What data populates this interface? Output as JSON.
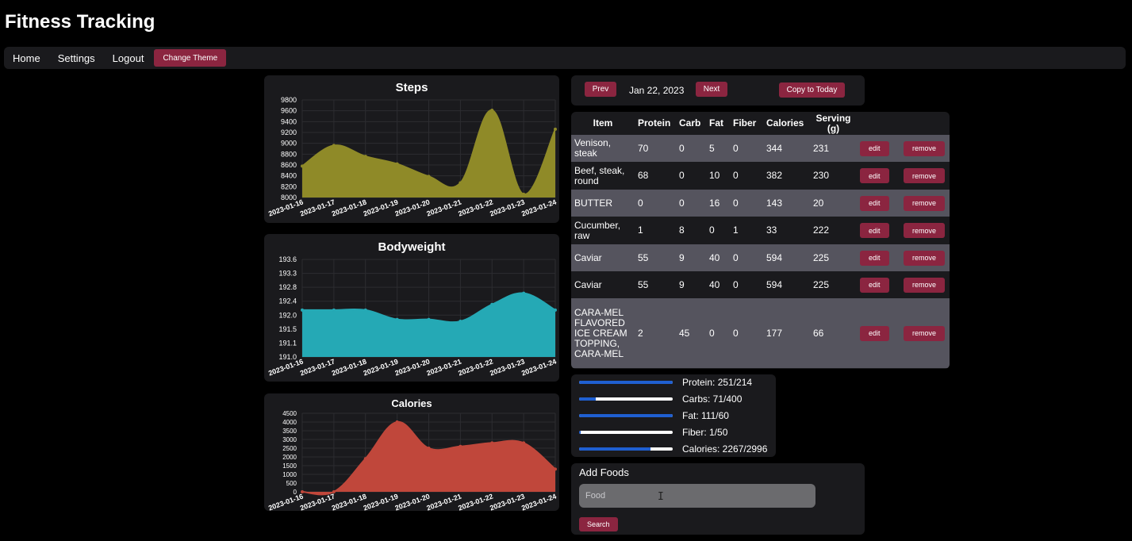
{
  "header": {
    "title": "Fitness Tracking"
  },
  "nav": {
    "links": [
      "Home",
      "Settings",
      "Logout"
    ],
    "theme_button": "Change Theme"
  },
  "colors": {
    "accent": "#8b2540",
    "panel": "#1a1a1d",
    "steps": "#8f8a28",
    "bodyweight": "#25a9b5",
    "calories": "#c0473b",
    "progress": "#1f5fd1"
  },
  "charts": [
    {
      "title": "Steps",
      "type": "area",
      "x": [
        "2023-01-16",
        "2023-01-17",
        "2023-01-18",
        "2023-01-19",
        "2023-01-20",
        "2023-01-21",
        "2023-01-22",
        "2023-01-23",
        "2023-01-24"
      ],
      "x_labels": [
        "2023-01-16",
        "2023-01-17",
        "2023-01-18",
        "2023-01-19",
        "2023-01-20",
        "2023-01-21",
        "2023-01-22",
        "2023-01-23",
        "2023-01-24"
      ],
      "values": [
        8580,
        8960,
        8760,
        8620,
        8390,
        8270,
        9610,
        8060,
        9260
      ],
      "y_ticks": [
        "9800",
        "9600",
        "9400",
        "9200",
        "9000",
        "8800",
        "8600",
        "8400",
        "8200",
        "8000"
      ],
      "ylim": [
        8000,
        9800
      ]
    },
    {
      "title": "Bodyweight",
      "type": "area",
      "x": [
        "2023-01-16",
        "2023-01-17",
        "2023-01-18",
        "2023-01-19",
        "2023-01-20",
        "2023-01-21",
        "2023-01-22",
        "2023-01-23",
        "2023-01-24"
      ],
      "x_labels": [
        "2023-01-16",
        "2023-01-17",
        "2023-01-18",
        "2023-01-19",
        "2023-01-20",
        "2023-01-21",
        "2023-01-22",
        "2023-01-23",
        "2023-01-24"
      ],
      "values": [
        192.25,
        192.25,
        192.25,
        192.0,
        192.0,
        191.95,
        192.4,
        192.7,
        192.25
      ],
      "y_ticks": [
        "193.6",
        "193.3",
        "192.8",
        "192.4",
        "192.0",
        "191.5",
        "191.1",
        "191.0"
      ],
      "ylim": [
        191.0,
        193.6
      ]
    },
    {
      "title": "Calories",
      "type": "area",
      "x": [
        "2023-01-16",
        "2023-01-17",
        "2023-01-18",
        "2023-01-19",
        "2023-01-20",
        "2023-01-21",
        "2023-01-22",
        "2023-01-23",
        "2023-01-24"
      ],
      "x_labels": [
        "2023-01-16",
        "2023-01-17",
        "2023-01-18",
        "2023-01-19",
        "2023-01-20",
        "2023-01-21",
        "2023-01-22",
        "2023-01-23",
        "2023-01-24"
      ],
      "values": [
        0,
        0,
        1900,
        4000,
        2500,
        2600,
        2800,
        2800,
        1300
      ],
      "y_ticks": [
        "4500",
        "4000",
        "3500",
        "3000",
        "2500",
        "2000",
        "1500",
        "1000",
        "500",
        "0"
      ],
      "ylim": [
        0,
        4500
      ]
    }
  ],
  "chart_data": [
    {
      "type": "area",
      "title": "Steps",
      "x": [
        "2023-01-16",
        "2023-01-17",
        "2023-01-18",
        "2023-01-19",
        "2023-01-20",
        "2023-01-21",
        "2023-01-22",
        "2023-01-23",
        "2023-01-24"
      ],
      "values": [
        8580,
        8960,
        8760,
        8620,
        8390,
        8270,
        9610,
        8060,
        9260
      ],
      "ylim": [
        8000,
        9800
      ]
    },
    {
      "type": "area",
      "title": "Bodyweight",
      "x": [
        "2023-01-16",
        "2023-01-17",
        "2023-01-18",
        "2023-01-19",
        "2023-01-20",
        "2023-01-21",
        "2023-01-22",
        "2023-01-23",
        "2023-01-24"
      ],
      "values": [
        192.25,
        192.25,
        192.25,
        192.0,
        192.0,
        191.95,
        192.4,
        192.7,
        192.25
      ],
      "ylim": [
        191.0,
        193.6
      ]
    },
    {
      "type": "area",
      "title": "Calories",
      "x": [
        "2023-01-16",
        "2023-01-17",
        "2023-01-18",
        "2023-01-19",
        "2023-01-20",
        "2023-01-21",
        "2023-01-22",
        "2023-01-23",
        "2023-01-24"
      ],
      "values": [
        0,
        0,
        1900,
        4000,
        2500,
        2600,
        2800,
        2800,
        1300
      ],
      "ylim": [
        0,
        4500
      ]
    }
  ],
  "date_nav": {
    "prev_label": "Prev",
    "date": "Jan 22, 2023",
    "next_label": "Next",
    "copy_label": "Copy to Today"
  },
  "food_table": {
    "headers": [
      "Item",
      "Protein",
      "Carb",
      "Fat",
      "Fiber",
      "Calories",
      "Serving (g)"
    ],
    "edit_label": "edit",
    "remove_label": "remove",
    "rows": [
      {
        "item": "Venison, steak",
        "protein": "70",
        "carb": "0",
        "fat": "5",
        "fiber": "0",
        "calories": "344",
        "serving": "231"
      },
      {
        "item": "Beef, steak, round",
        "protein": "68",
        "carb": "0",
        "fat": "10",
        "fiber": "0",
        "calories": "382",
        "serving": "230"
      },
      {
        "item": "BUTTER",
        "protein": "0",
        "carb": "0",
        "fat": "16",
        "fiber": "0",
        "calories": "143",
        "serving": "20"
      },
      {
        "item": "Cucumber, raw",
        "protein": "1",
        "carb": "8",
        "fat": "0",
        "fiber": "1",
        "calories": "33",
        "serving": "222"
      },
      {
        "item": "Caviar",
        "protein": "55",
        "carb": "9",
        "fat": "40",
        "fiber": "0",
        "calories": "594",
        "serving": "225"
      },
      {
        "item": "Caviar",
        "protein": "55",
        "carb": "9",
        "fat": "40",
        "fiber": "0",
        "calories": "594",
        "serving": "225"
      },
      {
        "item": "CARA-MEL FLAVORED ICE CREAM TOPPING, CARA-MEL",
        "protein": "2",
        "carb": "45",
        "fat": "0",
        "fiber": "0",
        "calories": "177",
        "serving": "66"
      }
    ]
  },
  "macros": [
    {
      "label": "Protein: 251/214",
      "fraction": 1.0
    },
    {
      "label": "Carbs: 71/400",
      "fraction": 0.18
    },
    {
      "label": "Fat: 111/60",
      "fraction": 1.0
    },
    {
      "label": "Fiber: 1/50",
      "fraction": 0.02
    },
    {
      "label": "Calories: 2267/2996",
      "fraction": 0.76
    }
  ],
  "add_foods": {
    "title": "Add Foods",
    "placeholder": "Food",
    "search_label": "Search"
  }
}
